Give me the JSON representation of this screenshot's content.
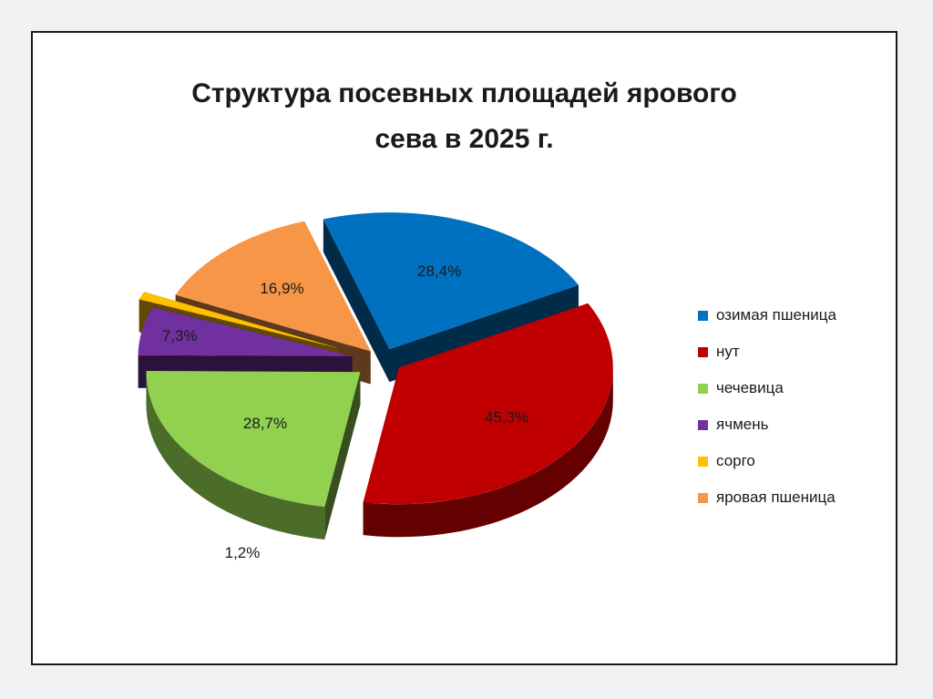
{
  "title": {
    "line1": "Структура посевных площадей ярового",
    "line2": "сева в 2025 г."
  },
  "chart_data": {
    "type": "pie",
    "exploded": true,
    "style": "3d",
    "legend_position": "right",
    "categories": [
      "озимая пшеница",
      "нут",
      "чечевица",
      "ячмень",
      "сорго",
      "яровая пшеница"
    ],
    "values": [
      28.4,
      45.3,
      28.7,
      7.3,
      1.2,
      16.9
    ],
    "data_labels": [
      "28,4%",
      "45,3%",
      "28,7%",
      "7,3%",
      "1,2%",
      "16,9%"
    ],
    "colors": [
      "#0070c0",
      "#c00000",
      "#92d050",
      "#7030a0",
      "#ffc000",
      "#f79646"
    ]
  }
}
